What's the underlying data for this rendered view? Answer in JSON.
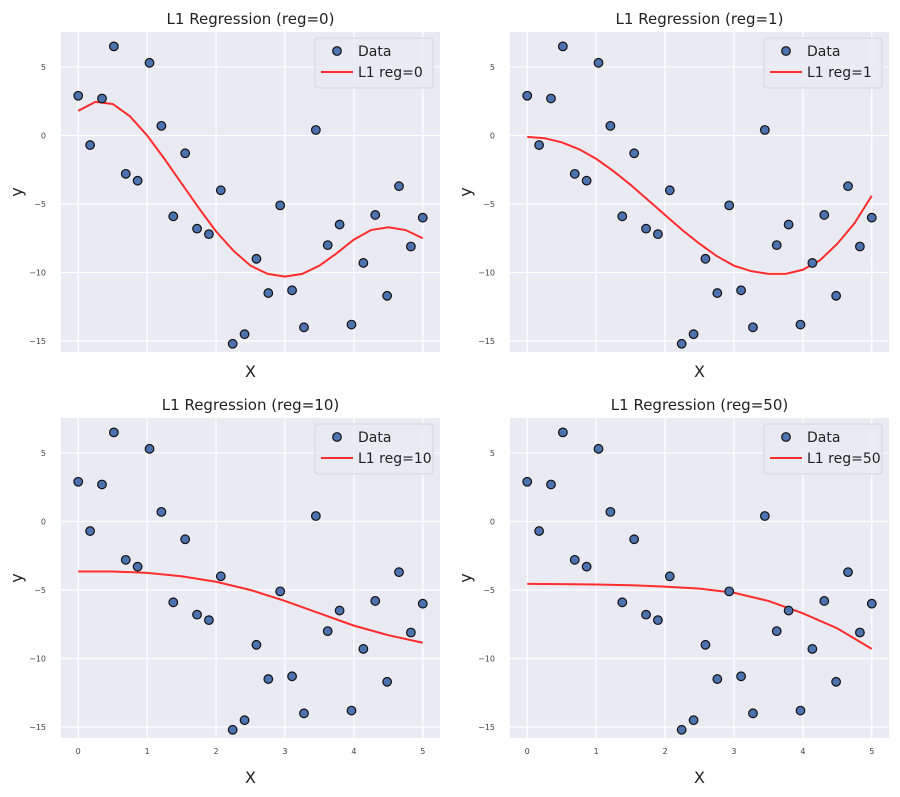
{
  "chart_data": [
    {
      "type": "scatter+line",
      "title": "L1 Regression (reg=0)",
      "xlabel": "X",
      "ylabel": "y",
      "xlim": [
        -0.25,
        5.25
      ],
      "ylim": [
        -15.8,
        7.55
      ],
      "xticks": [
        0,
        1,
        2,
        3,
        4,
        5
      ],
      "show_xtick_labels": false,
      "yticks": [
        5,
        0,
        -5,
        -10,
        -15
      ],
      "grid": true,
      "legend": "top-right",
      "series": [
        {
          "name": "Data",
          "kind": "scatter",
          "color": "#4c72b0"
        },
        {
          "name": "L1 reg=0",
          "kind": "line",
          "color": "#ff2d2d",
          "x": [
            0,
            0.25,
            0.5,
            0.75,
            1,
            1.25,
            1.5,
            1.75,
            2,
            2.25,
            2.5,
            2.75,
            3,
            3.25,
            3.5,
            3.75,
            4,
            4.25,
            4.5,
            4.75,
            5
          ],
          "y": [
            1.8,
            2.45,
            2.3,
            1.4,
            0.0,
            -1.7,
            -3.5,
            -5.3,
            -7.0,
            -8.4,
            -9.5,
            -10.1,
            -10.3,
            -10.1,
            -9.5,
            -8.6,
            -7.6,
            -6.9,
            -6.7,
            -6.9,
            -7.5
          ]
        }
      ]
    },
    {
      "type": "scatter+line",
      "title": "L1 Regression (reg=1)",
      "xlabel": "X",
      "ylabel": "y",
      "xlim": [
        -0.25,
        5.25
      ],
      "ylim": [
        -15.8,
        7.55
      ],
      "xticks": [
        0,
        1,
        2,
        3,
        4,
        5
      ],
      "show_xtick_labels": false,
      "yticks": [
        5,
        0,
        -5,
        -10,
        -15
      ],
      "grid": true,
      "legend": "top-right",
      "series": [
        {
          "name": "Data",
          "kind": "scatter",
          "color": "#4c72b0"
        },
        {
          "name": "L1 reg=1",
          "kind": "line",
          "color": "#ff2d2d",
          "x": [
            0,
            0.25,
            0.5,
            0.75,
            1,
            1.25,
            1.5,
            1.75,
            2,
            2.25,
            2.5,
            2.75,
            3,
            3.25,
            3.5,
            3.75,
            4,
            4.25,
            4.5,
            4.75,
            5
          ],
          "y": [
            -0.1,
            -0.2,
            -0.5,
            -1.0,
            -1.7,
            -2.6,
            -3.6,
            -4.7,
            -5.8,
            -6.9,
            -7.9,
            -8.8,
            -9.5,
            -9.9,
            -10.1,
            -10.1,
            -9.8,
            -9.1,
            -7.9,
            -6.4,
            -4.4
          ]
        }
      ]
    },
    {
      "type": "scatter+line",
      "title": "L1 Regression (reg=10)",
      "xlabel": "X",
      "ylabel": "y",
      "xlim": [
        -0.25,
        5.25
      ],
      "ylim": [
        -15.8,
        7.55
      ],
      "xticks": [
        0,
        1,
        2,
        3,
        4,
        5
      ],
      "show_xtick_labels": true,
      "yticks": [
        5,
        0,
        -5,
        -10,
        -15
      ],
      "grid": true,
      "legend": "top-right",
      "series": [
        {
          "name": "Data",
          "kind": "scatter",
          "color": "#4c72b0"
        },
        {
          "name": "L1 reg=10",
          "kind": "line",
          "color": "#ff2d2d",
          "x": [
            0,
            0.5,
            1,
            1.5,
            2,
            2.5,
            3,
            3.5,
            4,
            4.5,
            5
          ],
          "y": [
            -3.65,
            -3.65,
            -3.75,
            -4.0,
            -4.4,
            -5.0,
            -5.8,
            -6.7,
            -7.6,
            -8.3,
            -8.85
          ]
        }
      ]
    },
    {
      "type": "scatter+line",
      "title": "L1 Regression (reg=50)",
      "xlabel": "X",
      "ylabel": "y",
      "xlim": [
        -0.25,
        5.25
      ],
      "ylim": [
        -15.8,
        7.55
      ],
      "xticks": [
        0,
        1,
        2,
        3,
        4,
        5
      ],
      "show_xtick_labels": true,
      "yticks": [
        5,
        0,
        -5,
        -10,
        -15
      ],
      "grid": true,
      "legend": "top-right",
      "series": [
        {
          "name": "Data",
          "kind": "scatter",
          "color": "#4c72b0"
        },
        {
          "name": "L1 reg=50",
          "kind": "line",
          "color": "#ff2d2d",
          "x": [
            0,
            0.5,
            1,
            1.5,
            2,
            2.5,
            3,
            3.5,
            4,
            4.5,
            5
          ],
          "y": [
            -4.55,
            -4.57,
            -4.6,
            -4.65,
            -4.75,
            -4.9,
            -5.2,
            -5.8,
            -6.7,
            -7.8,
            -9.3
          ]
        }
      ]
    }
  ],
  "scatter_data": {
    "x": [
      0,
      0.1724,
      0.3448,
      0.5172,
      0.6897,
      0.8621,
      1.0345,
      1.2069,
      1.3793,
      1.5517,
      1.7241,
      1.8966,
      2.069,
      2.2414,
      2.4138,
      2.5862,
      2.7586,
      2.931,
      3.1034,
      3.2759,
      3.4483,
      3.6207,
      3.7931,
      3.9655,
      4.1379,
      4.3103,
      4.4828,
      4.6552,
      4.8276,
      5.0
    ],
    "y": [
      2.9,
      -0.7,
      2.7,
      6.5,
      -2.8,
      -3.3,
      5.3,
      0.7,
      -5.9,
      -1.3,
      -6.8,
      -7.2,
      -4.0,
      -15.2,
      -14.5,
      -9.0,
      -11.5,
      -5.1,
      -11.3,
      -14.0,
      0.4,
      -8.0,
      -6.5,
      -13.8,
      -9.3,
      -5.8,
      -11.7,
      -3.7,
      -8.1,
      -6.0
    ]
  }
}
